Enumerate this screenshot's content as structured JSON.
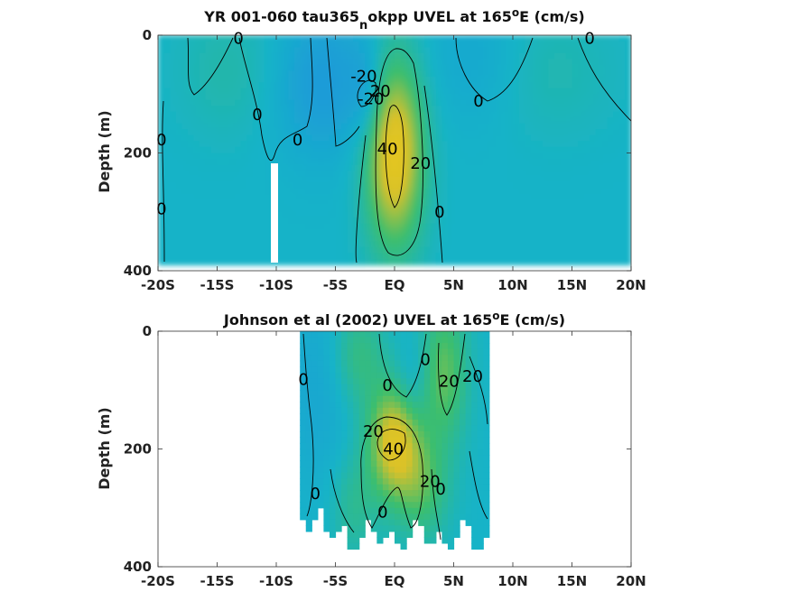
{
  "chart_data": [
    {
      "type": "heatmap",
      "title_parts": [
        "YR 001-060 tau365",
        "n",
        "okpp UVEL at 165",
        "o",
        "E (cm/s)"
      ],
      "ylabel": "Depth (m)",
      "xlim": [
        -20,
        20
      ],
      "ylim": [
        0,
        400
      ],
      "y_inverted": true,
      "x_ticks": [
        {
          "value": -20,
          "label": "-20S"
        },
        {
          "value": -15,
          "label": "-15S"
        },
        {
          "value": -10,
          "label": "-10S"
        },
        {
          "value": -5,
          "label": "-5S"
        },
        {
          "value": 0,
          "label": "EQ"
        },
        {
          "value": 5,
          "label": "5N"
        },
        {
          "value": 10,
          "label": "10N"
        },
        {
          "value": 15,
          "label": "15N"
        },
        {
          "value": 20,
          "label": "20N"
        }
      ],
      "y_ticks": [
        {
          "value": 0,
          "label": "0"
        },
        {
          "value": 200,
          "label": "200"
        },
        {
          "value": 400,
          "label": "400"
        }
      ],
      "data_extent": {
        "lat": [
          -20,
          20
        ],
        "depth": [
          0,
          385
        ]
      },
      "colors": {
        "low": "#1e8fe0",
        "mid": "#17b3c8",
        "high": "#d8c12a",
        "peak": "#e8c81e"
      },
      "field_features": [
        {
          "lat": 0,
          "depth": 200,
          "speed": 45,
          "sx": 1.7,
          "sy": 110
        },
        {
          "lat": -6,
          "depth": 80,
          "speed": -12,
          "sx": 3,
          "sy": 90
        },
        {
          "lat": -2.2,
          "depth": 100,
          "speed": -10,
          "sx": 1,
          "sy": 60
        },
        {
          "lat": 7,
          "depth": 40,
          "speed": -6,
          "sx": 3,
          "sy": 80
        },
        {
          "lat": -14,
          "depth": 60,
          "speed": 6,
          "sx": 3,
          "sy": 80
        },
        {
          "lat": 13,
          "depth": 60,
          "speed": 5,
          "sx": 4,
          "sy": 80
        }
      ],
      "contour_labels": [
        {
          "text": "0",
          "lat": -13.2,
          "depth": 5
        },
        {
          "text": "0",
          "lat": 16.5,
          "depth": 5
        },
        {
          "text": "-20",
          "lat": -2.6,
          "depth": 70
        },
        {
          "text": "-20",
          "lat": -2.0,
          "depth": 108
        },
        {
          "text": "20",
          "lat": -1.2,
          "depth": 95
        },
        {
          "text": "0",
          "lat": -11.6,
          "depth": 135
        },
        {
          "text": "0",
          "lat": -8.2,
          "depth": 178
        },
        {
          "text": "0",
          "lat": -19.7,
          "depth": 178
        },
        {
          "text": "0",
          "lat": 7.1,
          "depth": 112
        },
        {
          "text": "40",
          "lat": -0.6,
          "depth": 193
        },
        {
          "text": "20",
          "lat": 2.2,
          "depth": 218
        },
        {
          "text": "0",
          "lat": 3.8,
          "depth": 300
        },
        {
          "text": "0",
          "lat": -19.7,
          "depth": 295
        }
      ]
    },
    {
      "type": "heatmap",
      "title_parts": [
        "Johnson et al (2002) UVEL at 165",
        "o",
        "E (cm/s)"
      ],
      "ylabel": "Depth (m)",
      "xlim": [
        -20,
        20
      ],
      "ylim": [
        0,
        400
      ],
      "y_inverted": true,
      "x_ticks": [
        {
          "value": -20,
          "label": "-20S"
        },
        {
          "value": -15,
          "label": "-15S"
        },
        {
          "value": -10,
          "label": "-10S"
        },
        {
          "value": -5,
          "label": "-5S"
        },
        {
          "value": 0,
          "label": "EQ"
        },
        {
          "value": 5,
          "label": "5N"
        },
        {
          "value": 10,
          "label": "10N"
        },
        {
          "value": 15,
          "label": "15N"
        },
        {
          "value": 20,
          "label": "20N"
        }
      ],
      "y_ticks": [
        {
          "value": 0,
          "label": "0"
        },
        {
          "value": 200,
          "label": "200"
        },
        {
          "value": 400,
          "label": "400"
        }
      ],
      "data_extent": {
        "lat": [
          -8,
          8
        ],
        "depth": [
          0,
          345
        ]
      },
      "colors": {
        "low": "#1e8fe0",
        "mid": "#17b3c8",
        "high": "#d8c12a",
        "peak": "#e8c81e"
      },
      "field_features": [
        {
          "lat": 0,
          "depth": 190,
          "speed": 40,
          "sx": 1.6,
          "sy": 70
        },
        {
          "lat": 4.2,
          "depth": 70,
          "speed": 22,
          "sx": 1.4,
          "sy": 90
        },
        {
          "lat": -3,
          "depth": 40,
          "speed": 14,
          "sx": 1.5,
          "sy": 60
        },
        {
          "lat": 2.5,
          "depth": 270,
          "speed": 16,
          "sx": 1.5,
          "sy": 60
        },
        {
          "lat": -3.5,
          "depth": 300,
          "speed": 10,
          "sx": 1.3,
          "sy": 60
        },
        {
          "lat": -6.5,
          "depth": 100,
          "speed": -6,
          "sx": 2,
          "sy": 120
        },
        {
          "lat": 1.5,
          "depth": 90,
          "speed": -8,
          "sx": 1,
          "sy": 50
        }
      ],
      "contour_labels": [
        {
          "text": "0",
          "lat": -7.7,
          "depth": 82
        },
        {
          "text": "0",
          "lat": -0.6,
          "depth": 92
        },
        {
          "text": "0",
          "lat": 2.6,
          "depth": 48
        },
        {
          "text": "20",
          "lat": 4.6,
          "depth": 85
        },
        {
          "text": "20",
          "lat": 6.6,
          "depth": 77
        },
        {
          "text": "20",
          "lat": -1.8,
          "depth": 170
        },
        {
          "text": "40",
          "lat": -0.1,
          "depth": 200
        },
        {
          "text": "20",
          "lat": 3.0,
          "depth": 255
        },
        {
          "text": "0",
          "lat": 3.9,
          "depth": 268
        },
        {
          "text": "0",
          "lat": -6.7,
          "depth": 276
        },
        {
          "text": "0",
          "lat": -1.0,
          "depth": 307
        }
      ]
    }
  ]
}
